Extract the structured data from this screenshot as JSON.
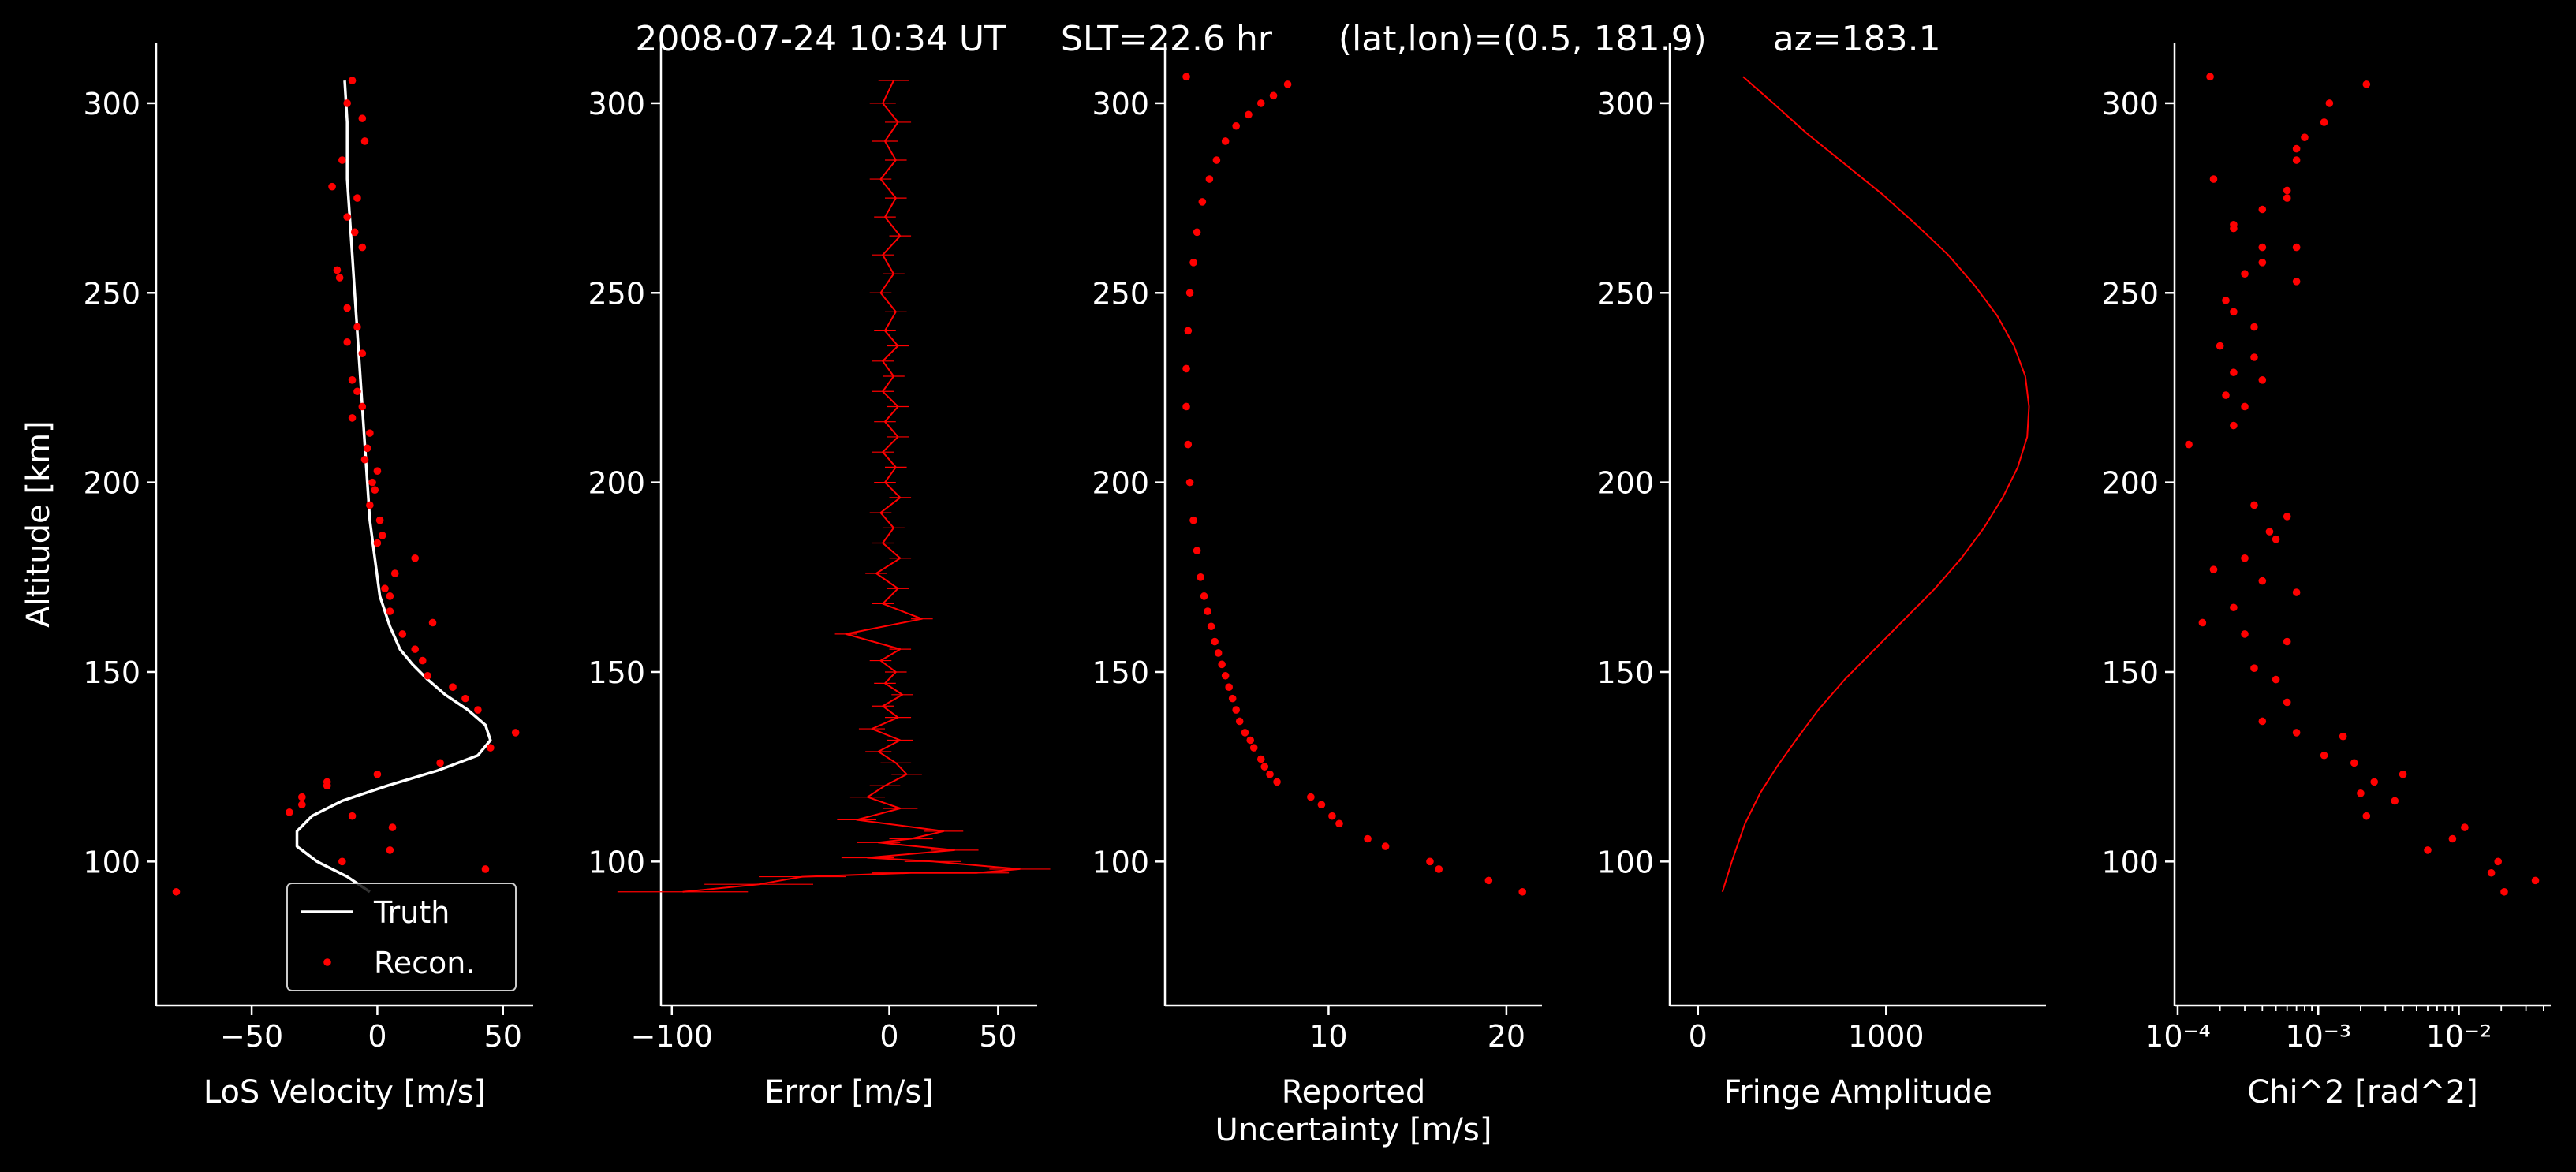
{
  "figure": {
    "title": "2008-07-24 10:34 UT     SLT=22.6 hr      (lat,lon)=(0.5, 181.9)      az=183.1",
    "background": "#000000",
    "foreground": "#ffffff",
    "accent": "#ff0000"
  },
  "chart_data": [
    {
      "type": "line",
      "xlabel": "LoS Velocity [m/s]",
      "ylabel": "Altitude [km]",
      "xlim": [
        -88,
        62
      ],
      "ylim": [
        62,
        316
      ],
      "xticks": [
        -50,
        0,
        50
      ],
      "xtick_labels": [
        "−50",
        "0",
        "50"
      ],
      "yticks": [
        100,
        150,
        200,
        250,
        300
      ],
      "ytick_labels": [
        "100",
        "150",
        "200",
        "250",
        "300"
      ],
      "legend": {
        "placement": "lower-right",
        "entries": [
          "Truth",
          "Recon."
        ]
      },
      "series": [
        {
          "name": "Truth",
          "kind": "line",
          "color": "#ffffff",
          "x": [
            -3,
            -12,
            -24,
            -32,
            -32,
            -26,
            -14,
            4,
            24,
            40,
            45,
            43,
            36,
            27,
            20,
            14,
            9,
            5,
            1,
            -1,
            -3,
            -4,
            -5,
            -6,
            -7,
            -8,
            -9,
            -10,
            -11,
            -12,
            -12,
            -13
          ],
          "y": [
            92,
            96,
            100,
            104,
            108,
            112,
            116,
            120,
            124,
            128,
            132,
            136,
            140,
            144,
            148,
            152,
            156,
            162,
            170,
            180,
            190,
            200,
            210,
            220,
            230,
            240,
            250,
            260,
            270,
            280,
            295,
            306
          ]
        },
        {
          "name": "Recon.",
          "kind": "points",
          "color": "#ff0000",
          "x": [
            -80,
            43,
            -14,
            5,
            6,
            -10,
            -35,
            -30,
            -30,
            -20,
            -20,
            0,
            25,
            45,
            55,
            40,
            35,
            30,
            20,
            18,
            15,
            10,
            22,
            5,
            5,
            3,
            7,
            15,
            0,
            2,
            1,
            -3,
            -1,
            -2,
            0,
            -5,
            -4,
            -3,
            -10,
            -6,
            -8,
            -10,
            -6,
            -12,
            -8,
            -12,
            -15,
            -16,
            -6,
            -9,
            -12,
            -8,
            -18,
            -14,
            -5,
            -6,
            -12,
            -10
          ],
          "y": [
            92,
            98,
            100,
            103,
            109,
            112,
            113,
            115,
            117,
            120,
            121,
            123,
            126,
            130,
            134,
            140,
            143,
            146,
            149,
            153,
            156,
            160,
            163,
            166,
            170,
            172,
            176,
            180,
            184,
            186,
            190,
            194,
            198,
            200,
            203,
            206,
            209,
            213,
            217,
            220,
            224,
            227,
            234,
            237,
            241,
            246,
            254,
            256,
            262,
            266,
            270,
            275,
            278,
            285,
            290,
            296,
            300,
            306
          ]
        }
      ]
    },
    {
      "type": "line",
      "xlabel": "Error [m/s]",
      "xlim": [
        -105,
        68
      ],
      "ylim": [
        62,
        316
      ],
      "xticks": [
        -100,
        0,
        50
      ],
      "xtick_labels": [
        "−100",
        "0",
        "50"
      ],
      "yticks": [
        100,
        150,
        200,
        250,
        300
      ],
      "ytick_labels": [
        "100",
        "150",
        "200",
        "250",
        "300"
      ],
      "series": [
        {
          "name": "",
          "kind": "line_with_errorbars",
          "color": "#ff0000",
          "x": [
            -95,
            -60,
            -40,
            10,
            40,
            60,
            20,
            -10,
            30,
            -5,
            10,
            25,
            -15,
            5,
            -10,
            -2,
            8,
            3,
            -5,
            5,
            -8,
            4,
            -3,
            6,
            -2,
            3,
            -4,
            5,
            -20,
            15,
            -3,
            4,
            -6,
            5,
            -3,
            2,
            -4,
            5,
            -2,
            3,
            -3,
            4,
            -2,
            4,
            -3,
            2,
            -3,
            4,
            -2,
            3,
            -4,
            2,
            -3,
            5,
            -2,
            3,
            -4,
            3,
            -2,
            4,
            -3,
            2
          ],
          "y": [
            92,
            94,
            96,
            97,
            97,
            98,
            100,
            101,
            103,
            105,
            106,
            108,
            111,
            114,
            117,
            120,
            123,
            126,
            129,
            132,
            135,
            138,
            141,
            144,
            147,
            150,
            153,
            156,
            160,
            164,
            168,
            172,
            176,
            180,
            184,
            188,
            192,
            196,
            200,
            204,
            208,
            212,
            216,
            220,
            224,
            228,
            232,
            236,
            240,
            245,
            250,
            255,
            260,
            265,
            270,
            275,
            280,
            285,
            290,
            295,
            300,
            306
          ],
          "xerr_half": [
            30,
            25,
            20,
            18,
            15,
            14,
            13,
            12,
            11,
            10,
            10,
            9,
            9,
            8,
            8,
            7,
            7,
            7,
            6,
            6,
            6,
            6,
            5,
            5,
            5,
            5,
            5,
            5,
            5,
            5,
            5,
            5,
            5,
            5,
            5,
            5,
            5,
            5,
            5,
            5,
            5,
            5,
            5,
            5,
            5,
            5,
            5,
            5,
            5,
            5,
            5,
            5,
            5,
            5,
            5,
            5,
            5,
            5,
            6,
            6,
            6,
            7
          ]
        }
      ]
    },
    {
      "type": "scatter",
      "xlabel": "Reported\nUncertainty [m/s]",
      "xlim": [
        0.8,
        22
      ],
      "ylim": [
        62,
        316
      ],
      "xticks": [
        10,
        20
      ],
      "xtick_labels": [
        "10",
        "20"
      ],
      "yticks": [
        100,
        150,
        200,
        250,
        300
      ],
      "ytick_labels": [
        "100",
        "150",
        "200",
        "250",
        "300"
      ],
      "series": [
        {
          "name": "",
          "kind": "points",
          "color": "#ff0000",
          "x": [
            20.9,
            19.0,
            16.2,
            15.7,
            13.2,
            12.2,
            10.6,
            10.2,
            9.6,
            9.0,
            7.1,
            6.7,
            6.4,
            6.2,
            5.8,
            5.6,
            5.3,
            5.0,
            4.8,
            4.6,
            4.4,
            4.2,
            4.0,
            3.8,
            3.6,
            3.4,
            3.2,
            3.0,
            2.8,
            2.6,
            2.4,
            2.2,
            2.1,
            2.0,
            2.0,
            2.1,
            2.2,
            2.4,
            2.6,
            2.9,
            3.3,
            3.7,
            4.2,
            4.8,
            5.5,
            6.2,
            6.9,
            7.7,
            2.0
          ],
          "y": [
            92,
            95,
            98,
            100,
            104,
            106,
            110,
            112,
            115,
            117,
            121,
            123,
            125,
            127,
            130,
            132,
            134,
            137,
            140,
            143,
            146,
            149,
            152,
            155,
            158,
            162,
            166,
            170,
            175,
            182,
            190,
            200,
            210,
            220,
            230,
            240,
            250,
            258,
            266,
            274,
            280,
            285,
            290,
            294,
            297,
            300,
            302,
            305,
            307
          ]
        }
      ]
    },
    {
      "type": "line",
      "xlabel": "Fringe Amplitude",
      "xlim": [
        -150,
        1850
      ],
      "ylim": [
        62,
        316
      ],
      "xticks": [
        0,
        1000
      ],
      "xtick_labels": [
        "0",
        "1000"
      ],
      "yticks": [
        100,
        150,
        200,
        250,
        300
      ],
      "ytick_labels": [
        "100",
        "150",
        "200",
        "250",
        "300"
      ],
      "series": [
        {
          "name": "",
          "kind": "line",
          "color": "#ff0000",
          "x": [
            130,
            180,
            250,
            330,
            420,
            520,
            640,
            780,
            940,
            1100,
            1260,
            1400,
            1520,
            1620,
            1700,
            1750,
            1760,
            1740,
            1680,
            1590,
            1470,
            1330,
            1160,
            980,
            780,
            580,
            400,
            240
          ],
          "y": [
            92,
            100,
            110,
            118,
            125,
            132,
            140,
            148,
            156,
            164,
            172,
            180,
            188,
            196,
            204,
            212,
            220,
            228,
            236,
            244,
            252,
            260,
            268,
            276,
            284,
            292,
            300,
            307
          ]
        }
      ]
    },
    {
      "type": "scatter",
      "xlabel": "Chi^2 [rad^2]",
      "xscale": "log",
      "xlim": [
        9.5e-05,
        0.045
      ],
      "ylim": [
        62,
        316
      ],
      "xticks": [
        0.0001,
        0.001,
        0.01
      ],
      "xtick_labels": [
        "10⁻⁴",
        "10⁻³",
        "10⁻²"
      ],
      "yticks": [
        100,
        150,
        200,
        250,
        300
      ],
      "ytick_labels": [
        "100",
        "150",
        "200",
        "250",
        "300"
      ],
      "series": [
        {
          "name": "",
          "kind": "points",
          "color": "#ff0000",
          "x": [
            0.021,
            0.035,
            0.017,
            0.019,
            0.006,
            0.009,
            0.011,
            0.0022,
            0.0035,
            0.002,
            0.0025,
            0.004,
            0.0018,
            0.0011,
            0.0015,
            0.0007,
            0.0004,
            0.0006,
            0.0005,
            0.00035,
            0.0006,
            0.0003,
            0.00015,
            0.00025,
            0.0007,
            0.0004,
            0.00018,
            0.0003,
            0.0005,
            0.00045,
            0.0006,
            0.00035,
            0.00012,
            0.00025,
            0.0003,
            0.00022,
            0.0004,
            0.00025,
            0.00035,
            0.0002,
            0.00035,
            0.00025,
            0.0003,
            0.00022,
            0.0007,
            0.00025,
            0.0004,
            0.0004,
            0.0007,
            0.00025,
            0.0004,
            0.0006,
            0.0006,
            0.00018,
            0.0007,
            0.0007,
            0.0008,
            0.0011,
            0.0012,
            0.0022,
            0.00017
          ],
          "y": [
            92,
            95,
            97,
            100,
            103,
            106,
            109,
            112,
            116,
            118,
            121,
            123,
            126,
            128,
            133,
            134,
            137,
            142,
            148,
            151,
            158,
            160,
            163,
            167,
            171,
            174,
            177,
            180,
            185,
            187,
            191,
            194,
            210,
            215,
            220,
            223,
            227,
            229,
            233,
            236,
            241,
            245,
            255,
            248,
            253,
            268,
            258,
            262,
            262,
            267,
            272,
            275,
            277,
            280,
            285,
            288,
            291,
            295,
            300,
            305,
            307
          ]
        }
      ]
    }
  ]
}
